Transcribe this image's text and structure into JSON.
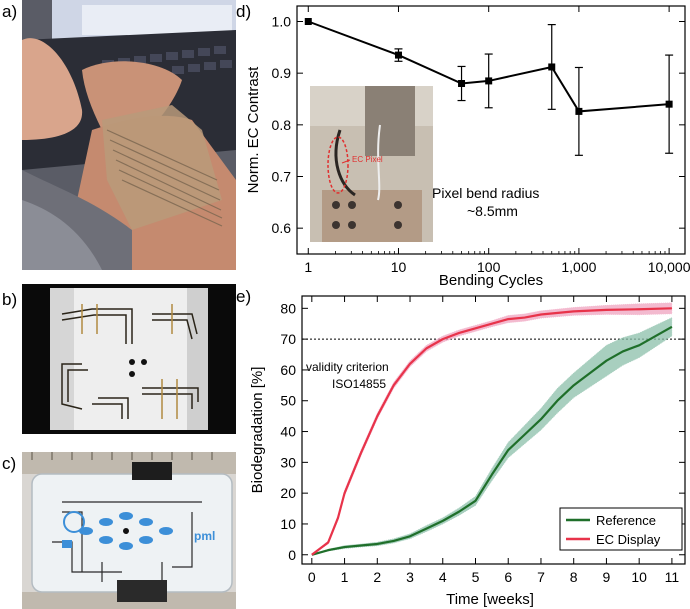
{
  "panels": {
    "a": "a)",
    "b": "b)",
    "c": "c)",
    "d": "d)",
    "e": "e)"
  },
  "photos": {
    "c_logo_text": "pml",
    "d_inset_label": "EC Pixel"
  },
  "colors": {
    "reference": "#1f6f2a",
    "reference_band": "#8cc0aa",
    "ec_display": "#e8334a",
    "ec_band": "#f0a3c0",
    "axis": "#000000"
  },
  "chart_data": [
    {
      "id": "d",
      "type": "line",
      "xscale": "log",
      "xlabel": "Bending Cycles",
      "ylabel": "Norm. EC Contrast",
      "xlim": [
        0.75,
        15000
      ],
      "ylim": [
        0.55,
        1.03
      ],
      "xticks": [
        1,
        10,
        100,
        1000,
        10000
      ],
      "xtick_labels": [
        "1",
        "10",
        "100",
        "1,000",
        "10,000"
      ],
      "yticks": [
        0.6,
        0.7,
        0.8,
        0.9,
        1.0
      ],
      "ytick_labels": [
        "0.6",
        "0.7",
        "0.8",
        "0.9",
        "1.0"
      ],
      "annotation": [
        "Pixel bend radius",
        "~8.5mm"
      ],
      "series": [
        {
          "x": [
            1,
            10,
            50,
            100,
            500,
            1000,
            10000
          ],
          "y": [
            1.0,
            0.935,
            0.88,
            0.885,
            0.912,
            0.826,
            0.84
          ],
          "err": [
            0.0,
            0.012,
            0.033,
            0.052,
            0.082,
            0.085,
            0.095
          ]
        }
      ]
    },
    {
      "id": "e",
      "type": "line",
      "xlabel": "Time [weeks]",
      "ylabel": "Biodegradation [%]",
      "xlim": [
        -0.3,
        11.4
      ],
      "ylim": [
        -3,
        84
      ],
      "xticks": [
        0,
        1,
        2,
        3,
        4,
        5,
        6,
        7,
        8,
        9,
        10,
        11
      ],
      "yticks": [
        0,
        10,
        20,
        30,
        40,
        50,
        60,
        70,
        80
      ],
      "reference_line": {
        "y": 70,
        "label1": "validity criterion",
        "label2": "ISO14855"
      },
      "legend_position": "bottom-right",
      "series": [
        {
          "name": "Reference",
          "x": [
            0,
            0.5,
            1,
            1.5,
            2,
            2.5,
            3,
            3.5,
            4,
            4.5,
            5,
            5.5,
            6,
            6.5,
            7,
            7.5,
            8,
            8.5,
            9,
            9.5,
            10,
            10.5,
            11
          ],
          "y": [
            0,
            1.5,
            2.5,
            3,
            3.5,
            4.5,
            6,
            8.5,
            11,
            14,
            17.5,
            26,
            34,
            39,
            44,
            50,
            55,
            59,
            63,
            66,
            68,
            71,
            74
          ],
          "band": [
            0,
            0.3,
            0.5,
            0.5,
            0.6,
            0.7,
            0.8,
            1.0,
            1.0,
            1.2,
            1.5,
            2.0,
            2.5,
            3.0,
            3.5,
            4.0,
            4.0,
            4.5,
            5.0,
            4.5,
            4.0,
            3.5,
            3.0
          ]
        },
        {
          "name": "EC Display",
          "x": [
            0,
            0.5,
            0.8,
            1,
            1.5,
            2,
            2.5,
            3,
            3.5,
            4,
            4.5,
            5,
            5.5,
            6,
            6.5,
            7,
            8,
            9,
            10,
            11
          ],
          "y": [
            0,
            4,
            12,
            20,
            33,
            45,
            55,
            62,
            67,
            70,
            72,
            73.5,
            75,
            76.5,
            77,
            78,
            79,
            79.5,
            79.7,
            80
          ],
          "band": [
            0,
            0.5,
            0.8,
            1.0,
            1.0,
            1.0,
            1.0,
            1.0,
            1.0,
            1.0,
            1.0,
            1.0,
            1.0,
            1.2,
            1.2,
            1.2,
            1.3,
            1.5,
            1.8,
            1.8
          ]
        }
      ]
    }
  ]
}
